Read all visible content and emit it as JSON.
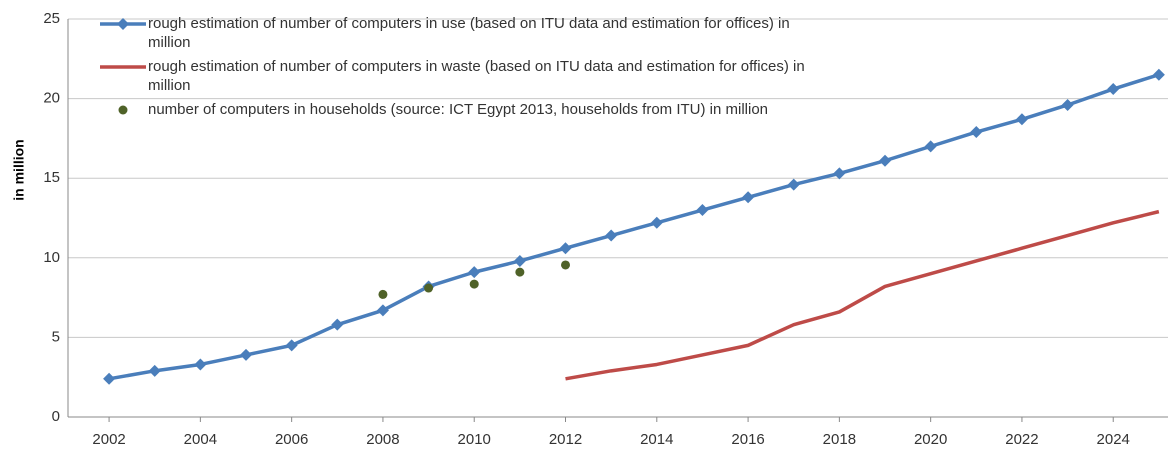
{
  "chart_data": {
    "type": "line",
    "y_label": "in million",
    "x": [
      2002,
      2003,
      2004,
      2005,
      2006,
      2007,
      2008,
      2009,
      2010,
      2011,
      2012,
      2013,
      2014,
      2015,
      2016,
      2017,
      2018,
      2019,
      2020,
      2021,
      2022,
      2023,
      2024,
      2025
    ],
    "series": [
      {
        "name": "rough estimation of number of computers in use (based on ITU data and estimation for offices) in million",
        "color": "#4a7ebb",
        "marker": "diamond",
        "values": [
          2.4,
          2.9,
          3.3,
          3.9,
          4.5,
          5.8,
          6.7,
          8.2,
          9.1,
          9.8,
          10.6,
          11.4,
          12.2,
          13.0,
          13.8,
          14.6,
          15.3,
          16.1,
          17.0,
          17.9,
          18.7,
          19.6,
          20.6,
          21.5
        ]
      },
      {
        "name": "rough estimation of number of computers in waste (based on ITU data and estimation for offices) in million",
        "color": "#be4b48",
        "values": [
          null,
          null,
          null,
          null,
          null,
          null,
          null,
          null,
          null,
          null,
          2.4,
          2.9,
          3.3,
          3.9,
          4.5,
          5.8,
          6.6,
          8.2,
          9.0,
          9.8,
          10.6,
          11.4,
          12.2,
          12.9
        ]
      },
      {
        "name": "number of computers in households (source: ICT Egypt 2013, households from ITU) in million",
        "color": "#4f6228",
        "type": "scatter",
        "x": [
          2008,
          2009,
          2010,
          2011,
          2012
        ],
        "values": [
          7.7,
          8.1,
          8.35,
          9.1,
          9.55
        ]
      }
    ],
    "xlim": [
      2001.1,
      2025.2
    ],
    "xticks": [
      2002,
      2004,
      2006,
      2008,
      2010,
      2012,
      2014,
      2016,
      2018,
      2020,
      2022,
      2024
    ],
    "ylim": [
      0,
      25
    ],
    "yticks": [
      0,
      5,
      10,
      15,
      20,
      25
    ],
    "grid": true,
    "legend": "upper left"
  }
}
